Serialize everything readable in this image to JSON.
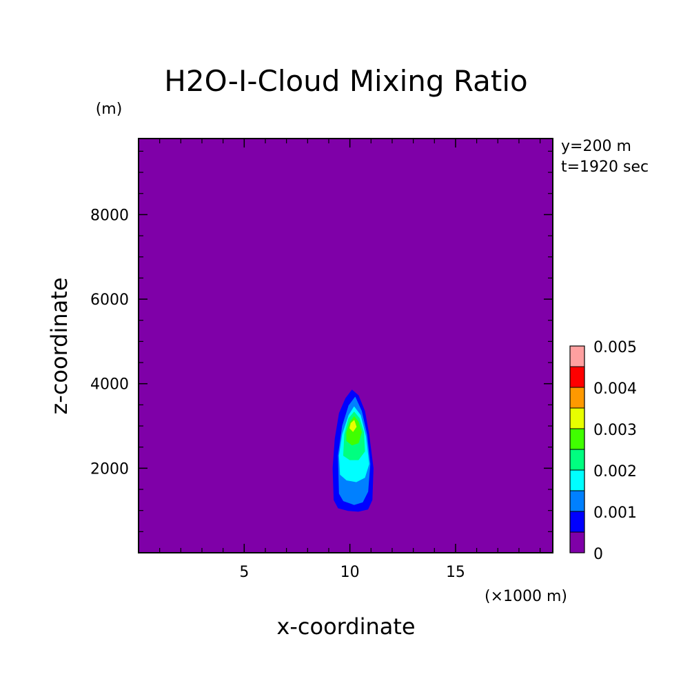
{
  "chart_data": {
    "type": "contour",
    "title": "H2O-I-Cloud Mixing Ratio",
    "xlabel": "x-coordinate",
    "ylabel": "z-coordinate",
    "x_unit": "(×1000 m)",
    "y_unit": "(m)",
    "annotations": [
      "y=200 m",
      "t=1920 sec"
    ],
    "xlim": [
      0,
      19.6
    ],
    "ylim": [
      0,
      9800
    ],
    "x_ticks": [
      5,
      10,
      15
    ],
    "y_ticks": [
      2000,
      4000,
      6000,
      8000
    ],
    "background_color": "#7f00a8",
    "colorbar": {
      "levels": [
        0,
        0.0005,
        0.001,
        0.0015,
        0.002,
        0.0025,
        0.003,
        0.0035,
        0.004,
        0.0045,
        0.005
      ],
      "colors": [
        "#7f00a8",
        "#0000ff",
        "#0080ff",
        "#00ffff",
        "#00ff80",
        "#40ff00",
        "#e8ff00",
        "#ff9900",
        "#ff0000",
        "#ffa0a0"
      ],
      "labels": [
        "0",
        "0.001",
        "0.002",
        "0.003",
        "0.004",
        "0.005"
      ]
    },
    "contours": [
      {
        "level": 0.0005,
        "color": "#0000ff",
        "points": [
          [
            9.25,
            1250
          ],
          [
            9.45,
            1060
          ],
          [
            9.9,
            1000
          ],
          [
            10.4,
            980
          ],
          [
            10.85,
            1030
          ],
          [
            11.05,
            1250
          ],
          [
            11.1,
            2000
          ],
          [
            10.9,
            2800
          ],
          [
            10.7,
            3350
          ],
          [
            10.4,
            3720
          ],
          [
            10.1,
            3850
          ],
          [
            9.8,
            3650
          ],
          [
            9.5,
            3300
          ],
          [
            9.3,
            2700
          ],
          [
            9.2,
            2000
          ]
        ]
      },
      {
        "level": 0.001,
        "color": "#0080ff",
        "points": [
          [
            9.5,
            1400
          ],
          [
            9.7,
            1230
          ],
          [
            10.2,
            1140
          ],
          [
            10.6,
            1200
          ],
          [
            10.85,
            1450
          ],
          [
            10.95,
            2100
          ],
          [
            10.8,
            2800
          ],
          [
            10.55,
            3350
          ],
          [
            10.25,
            3680
          ],
          [
            9.95,
            3480
          ],
          [
            9.65,
            3000
          ],
          [
            9.45,
            2300
          ]
        ]
      },
      {
        "level": 0.0015,
        "color": "#00ffff",
        "points": [
          [
            9.55,
            1850
          ],
          [
            9.85,
            1720
          ],
          [
            10.3,
            1680
          ],
          [
            10.7,
            1780
          ],
          [
            10.9,
            2100
          ],
          [
            10.75,
            2750
          ],
          [
            10.5,
            3250
          ],
          [
            10.2,
            3450
          ],
          [
            9.95,
            3250
          ],
          [
            9.65,
            2800
          ],
          [
            9.5,
            2300
          ]
        ]
      },
      {
        "level": 0.002,
        "color": "#00ff80",
        "points": [
          [
            9.7,
            2300
          ],
          [
            10.0,
            2200
          ],
          [
            10.4,
            2200
          ],
          [
            10.7,
            2400
          ],
          [
            10.65,
            2850
          ],
          [
            10.45,
            3180
          ],
          [
            10.2,
            3330
          ],
          [
            9.95,
            3180
          ],
          [
            9.75,
            2800
          ]
        ]
      },
      {
        "level": 0.0025,
        "color": "#40ff00",
        "points": [
          [
            9.85,
            2650
          ],
          [
            10.1,
            2550
          ],
          [
            10.4,
            2600
          ],
          [
            10.55,
            2850
          ],
          [
            10.4,
            3100
          ],
          [
            10.2,
            3220
          ],
          [
            10.0,
            3080
          ],
          [
            9.85,
            2850
          ]
        ]
      },
      {
        "level": 0.003,
        "color": "#e8ff00",
        "points": [
          [
            10.0,
            2950
          ],
          [
            10.15,
            2870
          ],
          [
            10.3,
            2980
          ],
          [
            10.2,
            3130
          ],
          [
            10.05,
            3060
          ]
        ]
      }
    ]
  }
}
